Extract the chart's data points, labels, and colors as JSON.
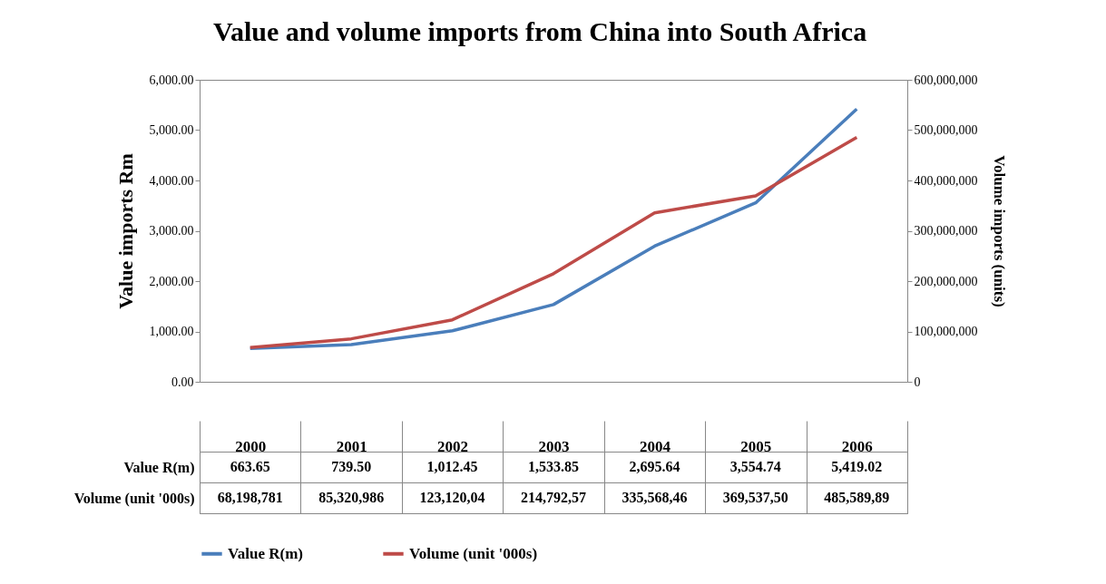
{
  "chart_data": {
    "type": "line",
    "title": "Value and volume imports from China into South Africa",
    "ylabel": "Value imports Rm",
    "y2label": "Volume imports (units)",
    "categories": [
      "2000",
      "2001",
      "2002",
      "2003",
      "2004",
      "2005",
      "2006"
    ],
    "series": [
      {
        "name": "Value R(m)",
        "color": "#4a7ebb",
        "values": [
          663.65,
          739.5,
          1012.45,
          1533.85,
          2695.64,
          3554.74,
          5419.02
        ],
        "value_labels": [
          "663.65",
          "739.50",
          "1,012.45",
          "1,533.85",
          "2,695.64",
          "3,554.74",
          "5,419.02"
        ]
      },
      {
        "name": "Volume (unit '000s)",
        "color": "#be4b48",
        "axis": "y2",
        "values": [
          68198781,
          85320986,
          123120000,
          214792600,
          335568500,
          369537500,
          485589900
        ],
        "value_labels": [
          "68,198,781",
          "85,320,986",
          "123,120,04",
          "214,792,57",
          "335,568,46",
          "369,537,50",
          "485,589,89"
        ]
      }
    ],
    "ylim": [
      0,
      6000
    ],
    "yticks": [
      {
        "value": 0,
        "label": "0.00"
      },
      {
        "value": 1000,
        "label": "1,000.00"
      },
      {
        "value": 2000,
        "label": "2,000.00"
      },
      {
        "value": 3000,
        "label": "3,000.00"
      },
      {
        "value": 4000,
        "label": "4,000.00"
      },
      {
        "value": 5000,
        "label": "5,000.00"
      },
      {
        "value": 6000,
        "label": "6,000.00"
      }
    ],
    "y2lim": [
      0,
      600000000
    ],
    "y2ticks": [
      0,
      {
        "value": 100000000,
        "label": "100,000,000"
      },
      {
        "value": 200000000,
        "label": "200,000,000"
      },
      {
        "value": 300000000,
        "label": "300,000,000"
      },
      {
        "value": 400000000,
        "label": "400,000,000"
      },
      {
        "value": 500000000,
        "label": "500,000,000"
      },
      {
        "value": 600000000,
        "label": "600,000,000"
      }
    ],
    "grid": false,
    "legend": "bottom",
    "line_style": "solid",
    "marker": "none"
  }
}
